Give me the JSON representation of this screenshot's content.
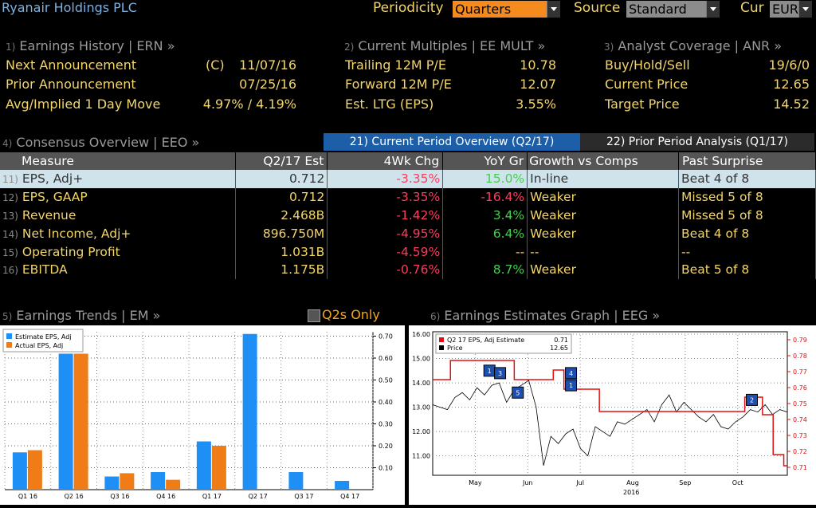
{
  "header": {
    "company": "Ryanair Holdings PLC",
    "periodicity_label": "Periodicity",
    "periodicity_value": "Quarters",
    "source_label": "Source",
    "source_value": "Standard",
    "cur_label": "Cur",
    "cur_value": "EUR"
  },
  "earnings_history": {
    "num": "1)",
    "title": "Earnings History | ERN »",
    "rows": [
      {
        "label": "Next Announcement",
        "flag": "(C)",
        "value": "11/07/16"
      },
      {
        "label": "Prior Announcement",
        "value": "07/25/16"
      },
      {
        "label": "Avg/Implied 1 Day Move",
        "value": "4.97% / 4.19%"
      }
    ]
  },
  "current_multiples": {
    "num": "2)",
    "title": "Current Multiples | EE MULT »",
    "rows": [
      {
        "label": "Trailing 12M P/E",
        "value": "10.78"
      },
      {
        "label": "Forward 12M P/E",
        "value": "12.07"
      },
      {
        "label": "Est. LTG (EPS)",
        "value": "3.55%"
      }
    ]
  },
  "analyst_coverage": {
    "num": "3)",
    "title": "Analyst Coverage | ANR »",
    "rows": [
      {
        "label": "Buy/Hold/Sell",
        "value": "19/6/0"
      },
      {
        "label": "Current Price",
        "value": "12.65"
      },
      {
        "label": "Target Price",
        "value": "14.52"
      }
    ]
  },
  "consensus": {
    "num": "4)",
    "title": "Consensus Overview | EEO »",
    "tab_current": "21) Current Period Overview (Q2/17)",
    "tab_prior": "22) Prior Period Analysis (Q1/17)",
    "columns": [
      "Measure",
      "Q2/17 Est",
      "4Wk Chg",
      "YoY Gr",
      "Growth vs Comps",
      "Past Surprise"
    ],
    "rows": [
      {
        "num": "11)",
        "measure": "EPS, Adj+",
        "est": "0.712",
        "chg": "-3.35%",
        "yoy": "15.0%",
        "growth": "In-line",
        "surprise": "Beat 4 of 8"
      },
      {
        "num": "12)",
        "measure": "EPS, GAAP",
        "est": "0.712",
        "chg": "-3.35%",
        "yoy": "-16.4%",
        "growth": "Weaker",
        "surprise": "Missed 5 of 8"
      },
      {
        "num": "13)",
        "measure": "Revenue",
        "est": "2.468B",
        "chg": "-1.42%",
        "yoy": "3.4%",
        "growth": "Weaker",
        "surprise": "Missed 5 of 8"
      },
      {
        "num": "14)",
        "measure": "Net Income, Adj+",
        "est": "896.750M",
        "chg": "-4.95%",
        "yoy": "6.4%",
        "growth": "Weaker",
        "surprise": "Beat 4 of 8"
      },
      {
        "num": "15)",
        "measure": "Operating Profit",
        "est": "1.031B",
        "chg": "-4.59%",
        "yoy": "--",
        "growth": "--",
        "surprise": "--"
      },
      {
        "num": "16)",
        "measure": "EBITDA",
        "est": "1.175B",
        "chg": "-0.76%",
        "yoy": "8.7%",
        "growth": "Weaker",
        "surprise": "Beat 5 of 8"
      }
    ]
  },
  "earnings_trends": {
    "num": "5)",
    "title": "Earnings Trends | EM »",
    "toggle_label": "Q2s Only"
  },
  "estimates_graph": {
    "num": "6)",
    "title": "Earnings Estimates Graph | EEG »"
  },
  "chart_data": [
    {
      "type": "bar",
      "categories": [
        "Q1 16",
        "Q2 16",
        "Q3 16",
        "Q4 16",
        "Q1 17",
        "Q2 17",
        "Q3 17",
        "Q4 17"
      ],
      "series": [
        {
          "name": "Estimate EPS, Adj",
          "color": "#1e8ff5",
          "values": [
            0.17,
            0.62,
            0.06,
            0.08,
            0.22,
            0.71,
            0.08,
            0.04
          ]
        },
        {
          "name": "Actual EPS, Adj",
          "color": "#f07c18",
          "values": [
            0.18,
            0.62,
            0.075,
            0.045,
            0.2,
            null,
            null,
            null
          ]
        }
      ],
      "yticks": [
        "0.10",
        "0.20",
        "0.30",
        "0.40",
        "0.50",
        "0.60",
        "0.70"
      ],
      "ylim": [
        0,
        0.72
      ],
      "legend": "top-left"
    },
    {
      "type": "line",
      "legend_entries": [
        {
          "name": "Q2 17 EPS, Adj Estimate",
          "value": "0.71",
          "color": "#e01010"
        },
        {
          "name": "Price",
          "value": "12.65",
          "color": "#000000"
        }
      ],
      "xticks": [
        "May",
        "Jun",
        "Jul",
        "Aug",
        "Sep",
        "Oct"
      ],
      "xlabel": "2016",
      "left_axis": {
        "ticks": [
          "11.00",
          "12.00",
          "13.00",
          "14.00",
          "15.00",
          "16.00"
        ],
        "ylim": [
          10.2,
          16.1
        ]
      },
      "right_axis": {
        "ticks": [
          "0.71",
          "0.72",
          "0.73",
          "0.74",
          "0.75",
          "0.76",
          "0.77",
          "0.78",
          "0.79"
        ],
        "ylim": [
          0.705,
          0.795
        ]
      },
      "estimate_steps": [
        {
          "t": 0.0,
          "v": 0.765
        },
        {
          "t": 0.05,
          "v": 0.777
        },
        {
          "t": 0.23,
          "v": 0.765
        },
        {
          "t": 0.34,
          "v": 0.771
        },
        {
          "t": 0.37,
          "v": 0.759
        },
        {
          "t": 0.47,
          "v": 0.745
        },
        {
          "t": 0.65,
          "v": 0.745
        },
        {
          "t": 0.87,
          "v": 0.745
        },
        {
          "t": 0.88,
          "v": 0.754
        },
        {
          "t": 0.93,
          "v": 0.743
        },
        {
          "t": 0.96,
          "v": 0.718
        },
        {
          "t": 0.99,
          "v": 0.711
        },
        {
          "t": 1.0,
          "v": 0.711
        }
      ],
      "price": [
        13.1,
        13.0,
        12.9,
        13.4,
        13.6,
        13.3,
        13.8,
        13.5,
        13.9,
        14.0,
        13.2,
        13.7,
        13.9,
        14.1,
        13.0,
        10.6,
        11.8,
        11.5,
        11.9,
        12.1,
        11.3,
        11.0,
        12.2,
        12.0,
        11.8,
        12.4,
        12.3,
        12.5,
        12.7,
        12.9,
        12.4,
        13.1,
        13.5,
        12.8,
        13.2,
        12.9,
        12.6,
        12.4,
        12.7,
        12.2,
        12.1,
        12.4,
        12.6,
        12.9,
        12.8,
        13.1,
        12.7,
        12.9,
        12.8
      ],
      "markers": [
        {
          "label": "1",
          "t": 0.16,
          "v": 14.5
        },
        {
          "label": "3",
          "t": 0.19,
          "v": 14.4
        },
        {
          "label": "5",
          "t": 0.24,
          "v": 13.6
        },
        {
          "label": "4",
          "t": 0.39,
          "v": 14.4
        },
        {
          "label": "1",
          "t": 0.39,
          "v": 13.9
        },
        {
          "label": "2",
          "t": 0.9,
          "v": 13.3
        }
      ]
    }
  ]
}
